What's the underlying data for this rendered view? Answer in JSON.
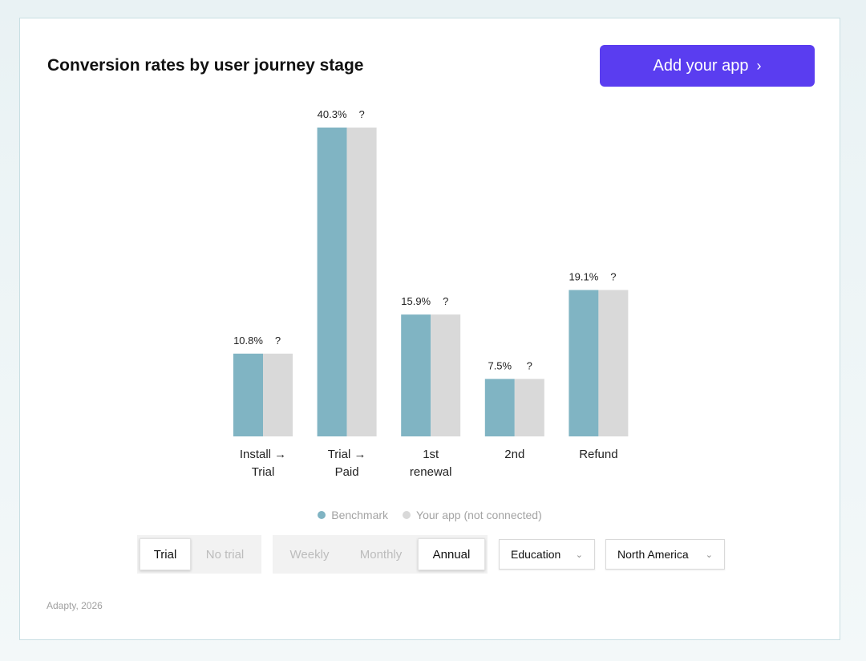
{
  "title": "Conversion rates by user journey stage",
  "add_button": {
    "label": "Add your app",
    "chevron": "›"
  },
  "chart_data": {
    "type": "bar",
    "title": "Conversion rates by user journey stage",
    "categories": [
      [
        "Install →",
        "Trial"
      ],
      [
        "Trial →",
        "Paid"
      ],
      [
        "1st",
        "renewal"
      ],
      [
        "2nd"
      ],
      [
        "Refund"
      ]
    ],
    "series": [
      {
        "name": "Benchmark",
        "values": [
          10.8,
          40.3,
          15.9,
          7.5,
          19.1
        ],
        "labels": [
          "10.8%",
          "40.3%",
          "15.9%",
          "7.5%",
          "19.1%"
        ],
        "color": "#80b4c3"
      },
      {
        "name": "Your app (not connected)",
        "values": [
          10.8,
          40.3,
          15.9,
          7.5,
          19.1
        ],
        "labels": [
          "?",
          "?",
          "?",
          "?",
          "?"
        ],
        "color": "#d9d9d9"
      }
    ],
    "ylim": [
      0,
      40.3
    ],
    "grid": false,
    "legend": "bottom-center"
  },
  "legend": {
    "benchmark": "Benchmark",
    "yours": "Your app (not connected)"
  },
  "filters": {
    "trial": {
      "options": [
        "Trial",
        "No trial"
      ],
      "selected": "Trial"
    },
    "period": {
      "options": [
        "Weekly",
        "Monthly",
        "Annual"
      ],
      "selected": "Annual"
    },
    "category": "Education",
    "region": "North America"
  },
  "footer": "Adapty, 2026"
}
